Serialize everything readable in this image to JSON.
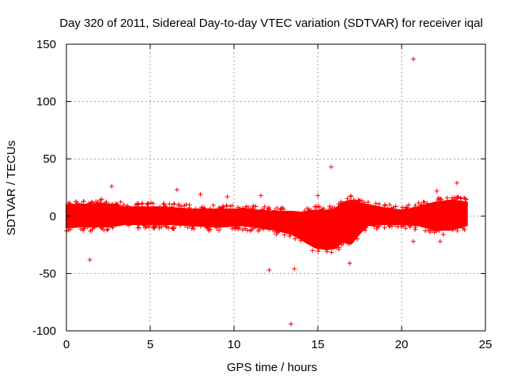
{
  "chart_data": {
    "type": "scatter",
    "title": "Day 320 of 2011, Sidereal Day-to-day VTEC variation (SDTVAR) for receiver iqal",
    "xlabel": "GPS time / hours",
    "ylabel": "SDTVAR / TECUs",
    "xlim": [
      0,
      25
    ],
    "ylim": [
      -100,
      150
    ],
    "xticks": [
      0,
      5,
      10,
      15,
      20,
      25
    ],
    "yticks": [
      -100,
      -50,
      0,
      50,
      100,
      150
    ],
    "grid": true,
    "marker": "+",
    "color": "#ff0000",
    "series": [
      {
        "name": "SDTVAR",
        "band": [
          {
            "x": 0.0,
            "lo": -10,
            "hi": 10
          },
          {
            "x": 1.0,
            "lo": -9,
            "hi": 10
          },
          {
            "x": 2.0,
            "lo": -9,
            "hi": 11
          },
          {
            "x": 2.7,
            "lo": -9,
            "hi": 10
          },
          {
            "x": 3.5,
            "lo": -7,
            "hi": 8
          },
          {
            "x": 4.5,
            "lo": -7,
            "hi": 8
          },
          {
            "x": 5.5,
            "lo": -7,
            "hi": 8
          },
          {
            "x": 6.5,
            "lo": -7,
            "hi": 7
          },
          {
            "x": 7.5,
            "lo": -8,
            "hi": 6
          },
          {
            "x": 8.5,
            "lo": -9,
            "hi": 6
          },
          {
            "x": 9.5,
            "lo": -9,
            "hi": 6
          },
          {
            "x": 10.5,
            "lo": -8,
            "hi": 6
          },
          {
            "x": 11.5,
            "lo": -10,
            "hi": 5
          },
          {
            "x": 12.5,
            "lo": -12,
            "hi": 4
          },
          {
            "x": 13.5,
            "lo": -16,
            "hi": 4
          },
          {
            "x": 14.2,
            "lo": -22,
            "hi": 3
          },
          {
            "x": 14.8,
            "lo": -27,
            "hi": 5
          },
          {
            "x": 15.5,
            "lo": -29,
            "hi": 5
          },
          {
            "x": 16.0,
            "lo": -28,
            "hi": 6
          },
          {
            "x": 16.5,
            "lo": -22,
            "hi": 12
          },
          {
            "x": 17.0,
            "lo": -24,
            "hi": 14
          },
          {
            "x": 17.5,
            "lo": -15,
            "hi": 11
          },
          {
            "x": 18.0,
            "lo": -8,
            "hi": 10
          },
          {
            "x": 19.0,
            "lo": -7,
            "hi": 7
          },
          {
            "x": 20.0,
            "lo": -7,
            "hi": 5
          },
          {
            "x": 21.0,
            "lo": -8,
            "hi": 8
          },
          {
            "x": 22.0,
            "lo": -12,
            "hi": 12
          },
          {
            "x": 23.0,
            "lo": -12,
            "hi": 14
          },
          {
            "x": 23.9,
            "lo": -8,
            "hi": 12
          }
        ],
        "points": [
          {
            "x": 20.7,
            "y": 137
          },
          {
            "x": 15.8,
            "y": 43
          },
          {
            "x": 6.6,
            "y": 23
          },
          {
            "x": 23.3,
            "y": 29
          },
          {
            "x": 22.1,
            "y": 22
          },
          {
            "x": 11.6,
            "y": 18
          },
          {
            "x": 15.0,
            "y": 18
          },
          {
            "x": 8.0,
            "y": 19
          },
          {
            "x": 2.7,
            "y": 26
          },
          {
            "x": 1.4,
            "y": -38
          },
          {
            "x": 12.1,
            "y": -47
          },
          {
            "x": 13.6,
            "y": -46
          },
          {
            "x": 13.4,
            "y": -94
          },
          {
            "x": 16.9,
            "y": -41
          },
          {
            "x": 20.7,
            "y": -22
          },
          {
            "x": 22.3,
            "y": -22
          },
          {
            "x": 9.6,
            "y": 17
          },
          {
            "x": 4.3,
            "y": 11
          }
        ]
      }
    ]
  }
}
